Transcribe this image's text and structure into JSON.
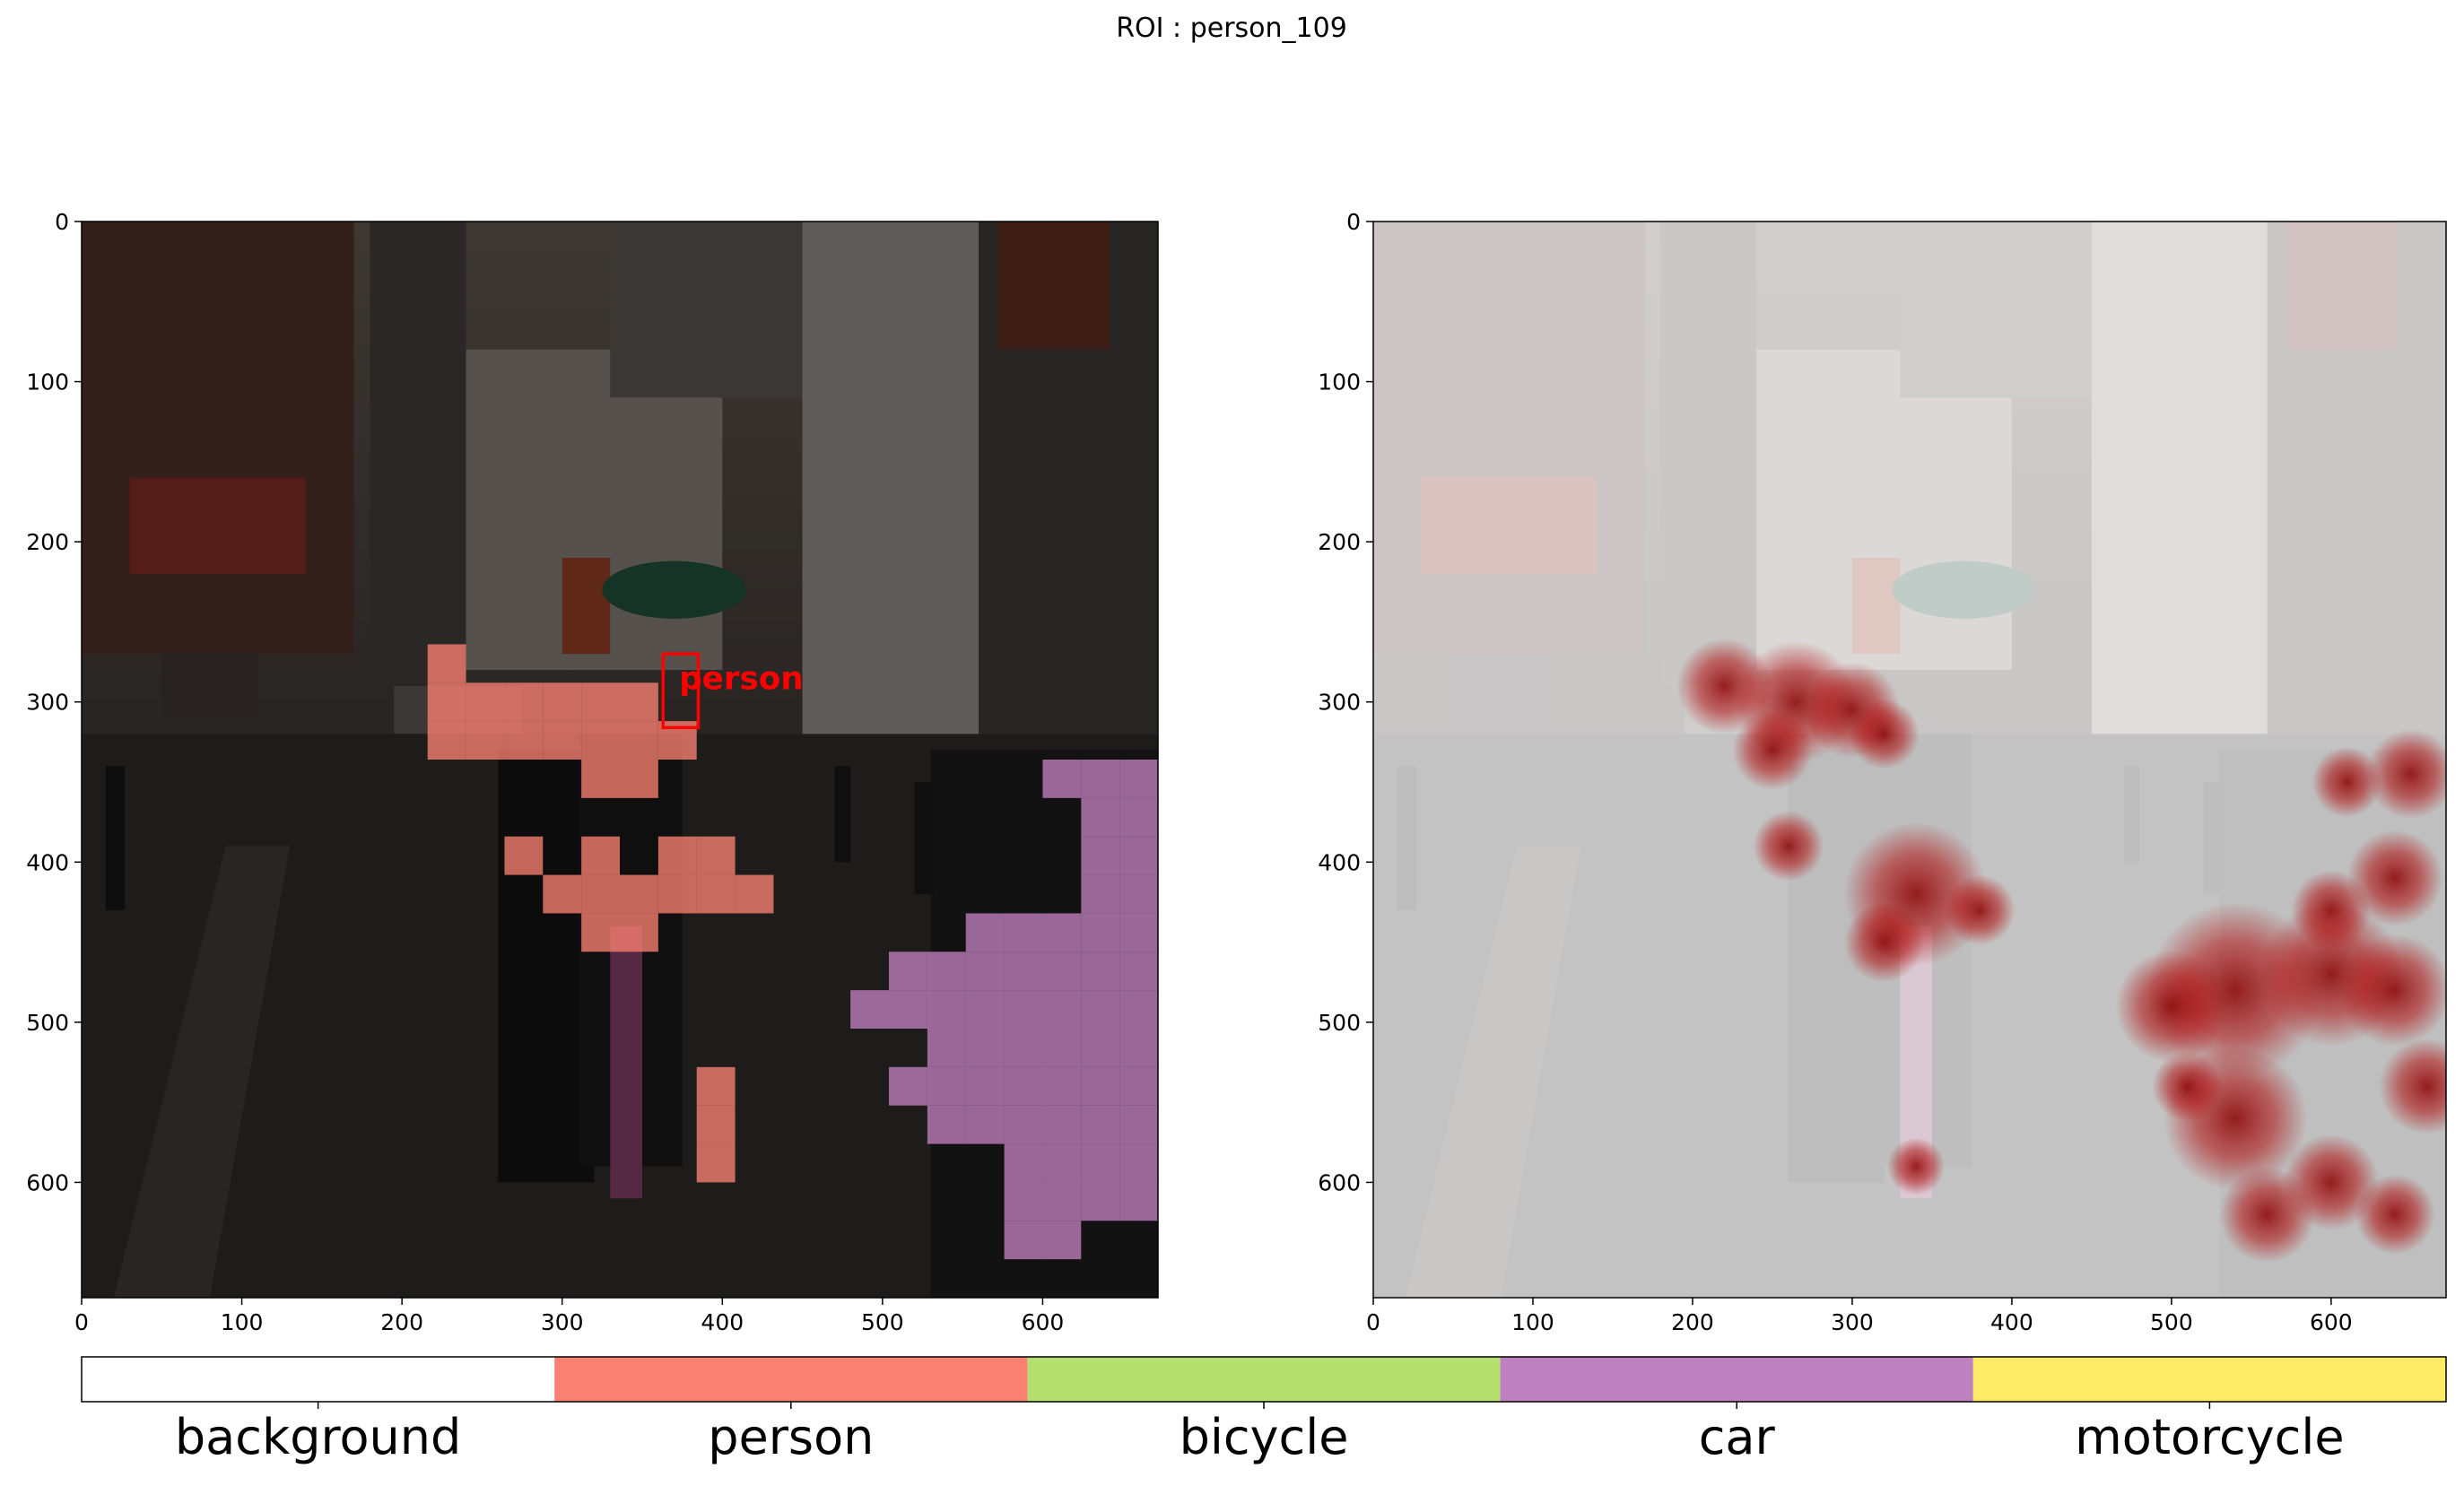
{
  "figure": {
    "title": "ROI : person_109"
  },
  "panels": [
    {
      "name": "segmentation-overlay",
      "image_description_hidden": true,
      "xlim": [
        0,
        672
      ],
      "ylim": [
        0,
        672
      ],
      "x_ticks": [
        0,
        100,
        200,
        300,
        400,
        500,
        600
      ],
      "y_ticks": [
        0,
        100,
        200,
        300,
        400,
        500,
        600
      ],
      "roi_label": "person",
      "roi_box": {
        "x0": 363,
        "y0": 270,
        "x1": 385,
        "y1": 316
      }
    },
    {
      "name": "attention-heatmap",
      "xlim": [
        0,
        672
      ],
      "ylim": [
        0,
        672
      ],
      "x_ticks": [
        0,
        100,
        200,
        300,
        400,
        500,
        600
      ],
      "y_ticks": [
        0,
        100,
        200,
        300,
        400,
        500,
        600
      ]
    }
  ],
  "chart_data": {
    "type": "heatmap",
    "legend": {
      "categories": [
        "background",
        "person",
        "bicycle",
        "car",
        "motorcycle"
      ],
      "colors": [
        "#ffffff",
        "#fa8072",
        "#b5df6e",
        "#bf80bf",
        "#ffec66"
      ]
    },
    "patch_size": 24,
    "segments": [
      {
        "category": "person",
        "cells": [
          [
            9,
            11
          ],
          [
            9,
            12
          ],
          [
            10,
            12
          ],
          [
            11,
            12
          ],
          [
            12,
            12
          ],
          [
            13,
            12
          ],
          [
            14,
            12
          ],
          [
            9,
            13
          ],
          [
            10,
            13
          ],
          [
            11,
            13
          ],
          [
            12,
            13
          ],
          [
            13,
            13
          ],
          [
            14,
            13
          ],
          [
            15,
            13
          ],
          [
            13,
            14
          ],
          [
            14,
            14
          ],
          [
            11,
            16
          ],
          [
            13,
            16
          ],
          [
            12,
            17
          ],
          [
            13,
            17
          ],
          [
            14,
            17
          ],
          [
            15,
            17
          ],
          [
            15,
            16
          ],
          [
            16,
            16
          ],
          [
            16,
            17
          ],
          [
            17,
            17
          ],
          [
            13,
            18
          ],
          [
            14,
            18
          ],
          [
            16,
            22
          ],
          [
            16,
            23
          ],
          [
            16,
            24
          ]
        ]
      },
      {
        "category": "car",
        "cells": [
          [
            25,
            14
          ],
          [
            26,
            14
          ],
          [
            27,
            14
          ],
          [
            26,
            15
          ],
          [
            27,
            15
          ],
          [
            26,
            16
          ],
          [
            27,
            16
          ],
          [
            26,
            17
          ],
          [
            27,
            17
          ],
          [
            23,
            18
          ],
          [
            24,
            18
          ],
          [
            25,
            18
          ],
          [
            26,
            18
          ],
          [
            27,
            18
          ],
          [
            21,
            19
          ],
          [
            22,
            19
          ],
          [
            23,
            19
          ],
          [
            24,
            19
          ],
          [
            25,
            19
          ],
          [
            26,
            19
          ],
          [
            27,
            19
          ],
          [
            20,
            20
          ],
          [
            21,
            20
          ],
          [
            22,
            20
          ],
          [
            23,
            20
          ],
          [
            24,
            20
          ],
          [
            25,
            20
          ],
          [
            26,
            20
          ],
          [
            27,
            20
          ],
          [
            22,
            21
          ],
          [
            23,
            21
          ],
          [
            24,
            21
          ],
          [
            25,
            21
          ],
          [
            26,
            21
          ],
          [
            27,
            21
          ],
          [
            21,
            22
          ],
          [
            22,
            22
          ],
          [
            23,
            22
          ],
          [
            24,
            22
          ],
          [
            25,
            22
          ],
          [
            26,
            22
          ],
          [
            27,
            22
          ],
          [
            22,
            23
          ],
          [
            23,
            23
          ],
          [
            24,
            23
          ],
          [
            25,
            23
          ],
          [
            26,
            23
          ],
          [
            27,
            23
          ],
          [
            24,
            24
          ],
          [
            25,
            24
          ],
          [
            26,
            24
          ],
          [
            27,
            24
          ],
          [
            24,
            25
          ],
          [
            25,
            25
          ],
          [
            26,
            25
          ],
          [
            27,
            25
          ],
          [
            24,
            26
          ],
          [
            25,
            26
          ],
          [
            28,
            26
          ],
          [
            28,
            27
          ]
        ]
      }
    ],
    "heat_spots": [
      {
        "x": 220,
        "y": 290,
        "r": 30
      },
      {
        "x": 265,
        "y": 300,
        "r": 38
      },
      {
        "x": 250,
        "y": 330,
        "r": 25
      },
      {
        "x": 300,
        "y": 305,
        "r": 30
      },
      {
        "x": 320,
        "y": 320,
        "r": 22
      },
      {
        "x": 260,
        "y": 390,
        "r": 22
      },
      {
        "x": 340,
        "y": 420,
        "r": 45
      },
      {
        "x": 320,
        "y": 450,
        "r": 25
      },
      {
        "x": 380,
        "y": 430,
        "r": 22
      },
      {
        "x": 340,
        "y": 590,
        "r": 18
      },
      {
        "x": 610,
        "y": 350,
        "r": 22
      },
      {
        "x": 650,
        "y": 345,
        "r": 28
      },
      {
        "x": 640,
        "y": 410,
        "r": 30
      },
      {
        "x": 600,
        "y": 430,
        "r": 25
      },
      {
        "x": 540,
        "y": 480,
        "r": 55
      },
      {
        "x": 600,
        "y": 470,
        "r": 45
      },
      {
        "x": 640,
        "y": 480,
        "r": 35
      },
      {
        "x": 500,
        "y": 490,
        "r": 35
      },
      {
        "x": 540,
        "y": 560,
        "r": 45
      },
      {
        "x": 560,
        "y": 620,
        "r": 30
      },
      {
        "x": 600,
        "y": 600,
        "r": 30
      },
      {
        "x": 640,
        "y": 620,
        "r": 25
      },
      {
        "x": 660,
        "y": 540,
        "r": 30
      },
      {
        "x": 510,
        "y": 540,
        "r": 22
      }
    ]
  }
}
